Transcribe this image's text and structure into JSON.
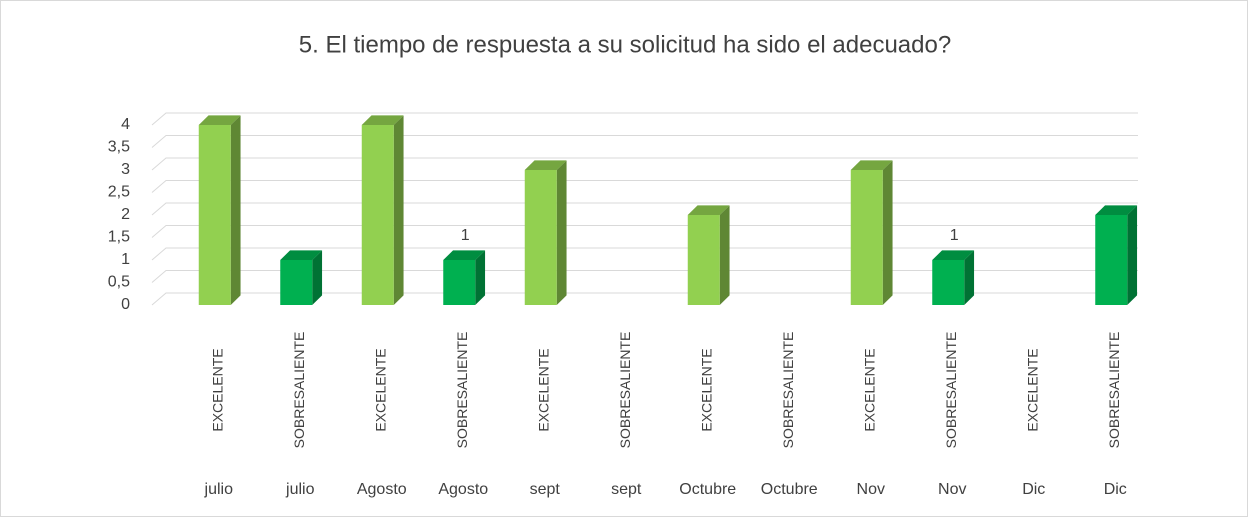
{
  "chart_data": {
    "type": "bar3d",
    "title": "5. El tiempo de respuesta a su solicitud ha sido el adecuado?",
    "categories": [
      "EXCELENTE",
      "SOBRESALIENTE",
      "EXCELENTE",
      "SOBRESALIENTE",
      "EXCELENTE",
      "SOBRESALIENTE",
      "EXCELENTE",
      "SOBRESALIENTE",
      "EXCELENTE",
      "SOBRESALIENTE",
      "EXCELENTE",
      "SOBRESALIENTE"
    ],
    "groups": [
      "julio",
      "julio",
      "Agosto",
      "Agosto",
      "sept",
      "sept",
      "Octubre",
      "Octubre",
      "Nov",
      "Nov",
      "Dic",
      "Dic"
    ],
    "values": [
      4,
      1,
      4,
      1,
      3,
      null,
      2,
      null,
      3,
      1,
      null,
      2
    ],
    "value_labels": [
      null,
      null,
      null,
      "1",
      null,
      null,
      null,
      null,
      null,
      "1",
      null,
      null
    ],
    "colors": [
      "#92d050",
      "#00b050",
      "#92d050",
      "#00b050",
      "#92d050",
      "#00b050",
      "#92d050",
      "#00b050",
      "#92d050",
      "#00b050",
      "#92d050",
      "#00b050"
    ],
    "ylim": [
      0,
      4
    ],
    "yticks": [
      0,
      {
        "value": 0.5,
        "label": "0,5"
      },
      1,
      {
        "value": 1.5,
        "label": "1,5"
      },
      2,
      {
        "value": 2.5,
        "label": "2,5"
      },
      3,
      {
        "value": 3.5,
        "label": "3,5"
      },
      4
    ],
    "grid": true
  }
}
